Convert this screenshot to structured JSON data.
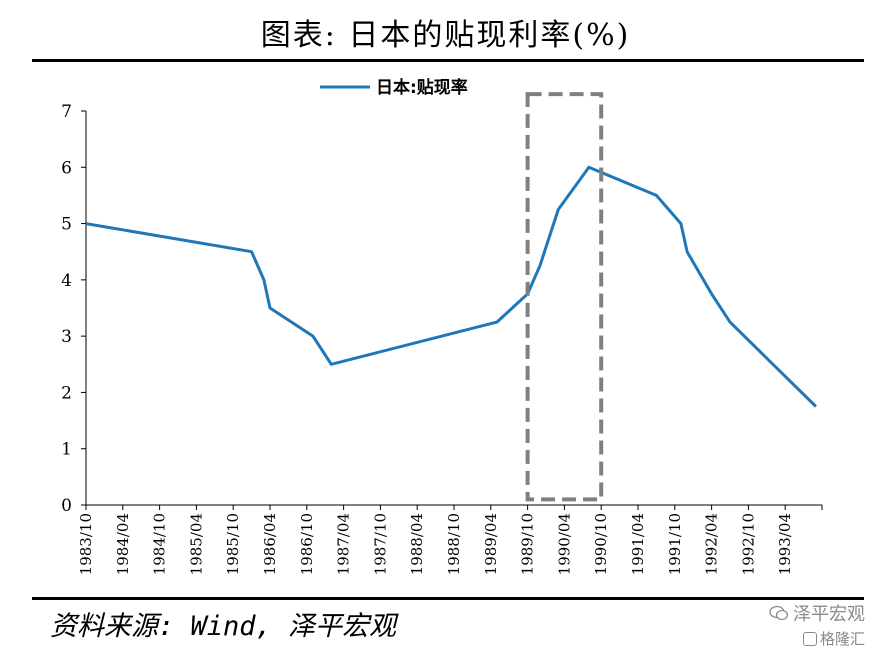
{
  "title": "图表: 日本的贴现利率(%)",
  "source": "资料来源: Wind, 泽平宏观",
  "watermark": {
    "brand": "泽平宏观",
    "sub": "格隆汇",
    "icon": "wechat-icon"
  },
  "colors": {
    "line": "#1f77b8",
    "highlight_box": "#808080",
    "axis": "#000000"
  },
  "chart_data": {
    "type": "line",
    "title": "图表: 日本的贴现利率(%)",
    "legend": "top-center",
    "grid": false,
    "ylim": [
      0,
      7
    ],
    "yticks": [
      "0",
      "1",
      "2",
      "3",
      "4",
      "5",
      "6",
      "7"
    ],
    "xlim": [
      "1983/10",
      "1993/10"
    ],
    "xticks": [
      "1983/10",
      "1984/04",
      "1984/10",
      "1985/04",
      "1985/10",
      "1986/04",
      "1986/10",
      "1987/04",
      "1987/10",
      "1988/04",
      "1988/10",
      "1989/04",
      "1989/10",
      "1990/04",
      "1990/10",
      "1991/04",
      "1991/10",
      "1992/04",
      "1992/10",
      "1993/04"
    ],
    "series": [
      {
        "name": "日本:贴现率",
        "x": [
          "1983/10",
          "1986/01",
          "1986/03",
          "1986/04",
          "1986/11",
          "1987/02",
          "1989/05",
          "1989/10",
          "1989/12",
          "1990/03",
          "1990/08",
          "1991/07",
          "1991/11",
          "1991/12",
          "1992/04",
          "1992/07",
          "1993/09"
        ],
        "values": [
          5.0,
          4.5,
          4.0,
          3.5,
          3.0,
          2.5,
          3.25,
          3.75,
          4.25,
          5.25,
          6.0,
          5.5,
          5.0,
          4.5,
          3.75,
          3.25,
          1.75
        ]
      }
    ],
    "annotations": [
      {
        "type": "dashed-box",
        "x_from": "1989/10",
        "x_to": "1990/10",
        "y_from": 0.1,
        "y_to": 7.3
      }
    ]
  }
}
